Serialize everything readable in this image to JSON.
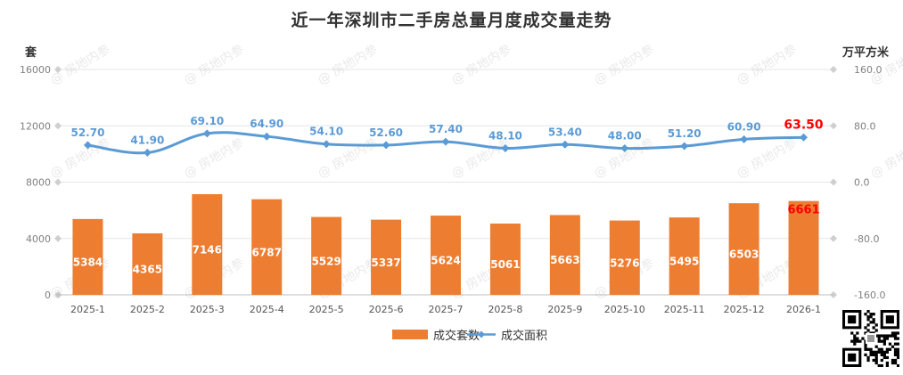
{
  "title": "近一年深圳市二手房总量月度成交量走势",
  "watermark": "房地内参",
  "colors": {
    "bar": "#ED7D31",
    "line": "#5B9BD5",
    "line_label": "#5B9BD5",
    "highlight": "#FF0000",
    "grid": "#E6E6E6",
    "axis_text": "#808080"
  },
  "chart_data": {
    "type": "bar+line",
    "categories": [
      "2025-1",
      "2025-2",
      "2025-3",
      "2025-4",
      "2025-5",
      "2025-6",
      "2025-7",
      "2025-8",
      "2025-9",
      "2025-10",
      "2025-11",
      "2025-12",
      "2026-1"
    ],
    "series": [
      {
        "name": "成交套数",
        "type": "bar",
        "axis": "left",
        "values": [
          5384,
          4365,
          7146,
          6787,
          5529,
          5337,
          5624,
          5061,
          5663,
          5276,
          5495,
          6503,
          6661
        ],
        "labels": [
          "5384",
          "4365",
          "7146",
          "6787",
          "5529",
          "5337",
          "5624",
          "5061",
          "5663",
          "5276",
          "5495",
          "6503",
          "6661"
        ]
      },
      {
        "name": "成交面积",
        "type": "line",
        "axis": "right",
        "values": [
          52.7,
          41.9,
          69.1,
          64.9,
          54.1,
          52.6,
          57.4,
          48.1,
          53.4,
          48.0,
          51.2,
          60.9,
          63.5
        ],
        "labels": [
          "52.70",
          "41.90",
          "69.10",
          "64.90",
          "54.10",
          "52.60",
          "57.40",
          "48.10",
          "53.40",
          "48.00",
          "51.20",
          "60.90",
          "63.50"
        ]
      }
    ],
    "y_left": {
      "label": "套",
      "ylim": [
        0,
        16000
      ],
      "ticks": [
        "0",
        "4000",
        "8000",
        "12000",
        "16000"
      ]
    },
    "y_right": {
      "label": "万平方米",
      "ylim": [
        -160,
        160
      ],
      "ticks": [
        "-160.0",
        "-80.0",
        "0.0",
        "80.0",
        "160.0"
      ]
    },
    "legend": {
      "position": "bottom",
      "entries": [
        "成交套数",
        "成交面积"
      ]
    },
    "grid": true,
    "highlight_last": true
  }
}
